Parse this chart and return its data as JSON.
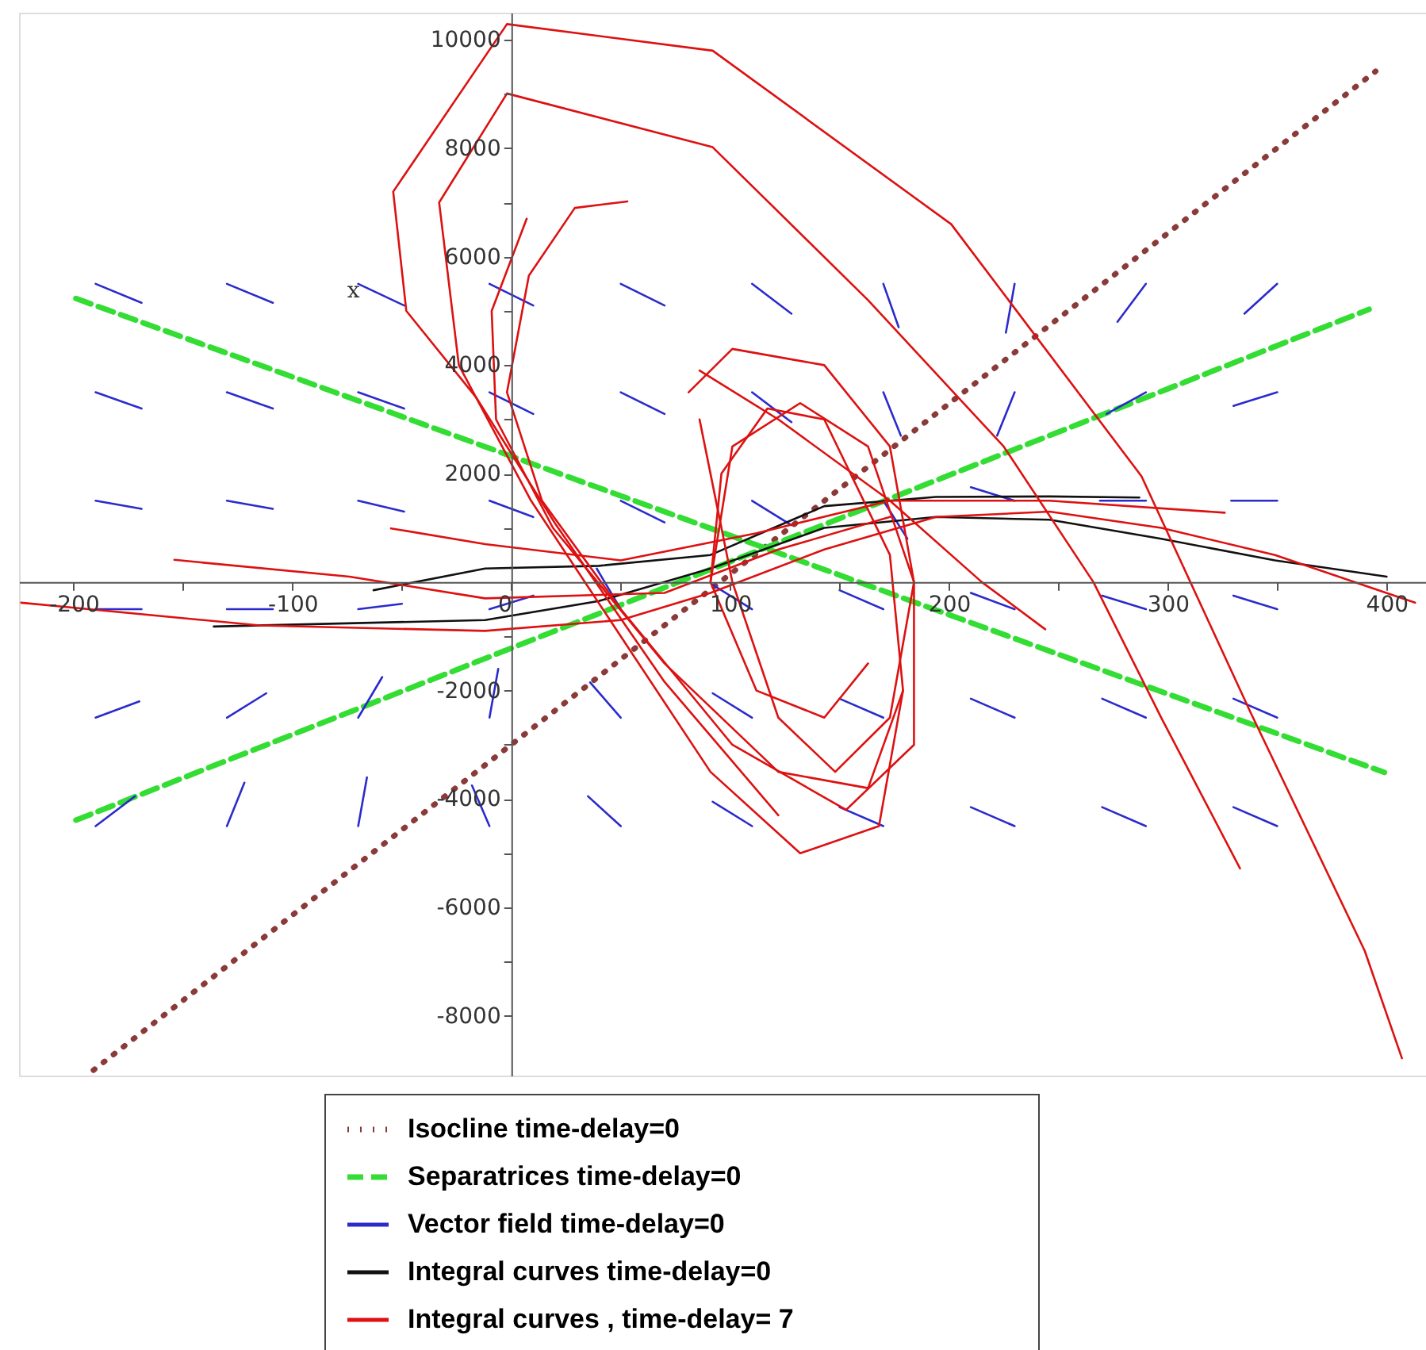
{
  "chart_data": {
    "type": "line",
    "ylabel": "x",
    "xlim": [
      -225,
      418
    ],
    "ylim": [
      -9100,
      10500
    ],
    "xticks": [
      -200,
      {
        "value": -150,
        "label": null
      },
      -100,
      {
        "value": -50,
        "label": null
      },
      0,
      {
        "value": 50,
        "label": null
      },
      100,
      {
        "value": 150,
        "label": null
      },
      200,
      {
        "value": 250,
        "label": null
      },
      300,
      {
        "value": 350,
        "label": null
      },
      400
    ],
    "yticks": [
      -8000,
      {
        "value": -7000,
        "label": null
      },
      -6000,
      {
        "value": -5000,
        "label": null
      },
      -4000,
      {
        "value": -3000,
        "label": null
      },
      -2000,
      {
        "value": -1000,
        "label": null
      },
      {
        "value": 1000,
        "label": null
      },
      2000,
      {
        "value": 3000,
        "label": null
      },
      4000,
      {
        "value": 5000,
        "label": null
      },
      6000,
      {
        "value": 7000,
        "label": null
      },
      8000,
      {
        "value": 9000,
        "label": null
      },
      10000
    ],
    "grid": false,
    "legend": "bottom",
    "marker": "none",
    "series": [
      {
        "name": "Isocline time-delay=0",
        "color": "#8b3a3a",
        "line_style": "dotted",
        "x": [
          -191,
          395
        ],
        "values": [
          -9000,
          9420
        ]
      },
      {
        "name": "Separatrices  time-delay=0",
        "color": "#33dd33",
        "line_style": "dashed",
        "x": [
          -199,
          399
        ],
        "values": [
          5230,
          -3510
        ]
      },
      {
        "color": "#33dd33",
        "line_style": "dashed",
        "x": [
          -199,
          392
        ],
        "values": [
          -4390,
          5030
        ]
      },
      {
        "name": "Vector field  time-delay=0",
        "color": "#2b2bcc",
        "line_style": "solid",
        "x": [
          -190,
          -169
        ],
        "values": [
          5500,
          5150
        ]
      },
      {
        "color": "#2b2bcc",
        "line_style": "solid",
        "x": [
          -190,
          -169
        ],
        "values": [
          3500,
          3200
        ]
      },
      {
        "color": "#2b2bcc",
        "line_style": "solid",
        "x": [
          -190,
          -169
        ],
        "values": [
          1500,
          1350
        ]
      },
      {
        "color": "#2b2bcc",
        "line_style": "solid",
        "x": [
          -190,
          -169
        ],
        "values": [
          -500,
          -500
        ]
      },
      {
        "color": "#2b2bcc",
        "line_style": "solid",
        "x": [
          -190,
          -170
        ],
        "values": [
          -2500,
          -2200
        ]
      },
      {
        "color": "#2b2bcc",
        "line_style": "solid",
        "x": [
          -190,
          -172
        ],
        "values": [
          -4500,
          -3950
        ]
      },
      {
        "color": "#2b2bcc",
        "line_style": "solid",
        "x": [
          -130,
          -109
        ],
        "values": [
          5500,
          5150
        ]
      },
      {
        "color": "#2b2bcc",
        "line_style": "solid",
        "x": [
          -130,
          -109
        ],
        "values": [
          3500,
          3200
        ]
      },
      {
        "color": "#2b2bcc",
        "line_style": "solid",
        "x": [
          -130,
          -109
        ],
        "values": [
          1500,
          1350
        ]
      },
      {
        "color": "#2b2bcc",
        "line_style": "solid",
        "x": [
          -130,
          -109
        ],
        "values": [
          -500,
          -500
        ]
      },
      {
        "color": "#2b2bcc",
        "line_style": "solid",
        "x": [
          -130,
          -112
        ],
        "values": [
          -2500,
          -2050
        ]
      },
      {
        "color": "#2b2bcc",
        "line_style": "solid",
        "x": [
          -130,
          -122
        ],
        "values": [
          -4500,
          -3700
        ]
      },
      {
        "color": "#2b2bcc",
        "line_style": "solid",
        "x": [
          -70,
          -49
        ],
        "values": [
          5500,
          5100
        ]
      },
      {
        "color": "#2b2bcc",
        "line_style": "solid",
        "x": [
          -70,
          -49
        ],
        "values": [
          3500,
          3200
        ]
      },
      {
        "color": "#2b2bcc",
        "line_style": "solid",
        "x": [
          -70,
          -49
        ],
        "values": [
          1500,
          1300
        ]
      },
      {
        "color": "#2b2bcc",
        "line_style": "solid",
        "x": [
          -70,
          -50
        ],
        "values": [
          -500,
          -400
        ]
      },
      {
        "color": "#2b2bcc",
        "line_style": "solid",
        "x": [
          -70,
          -59
        ],
        "values": [
          -2500,
          -1750
        ]
      },
      {
        "color": "#2b2bcc",
        "line_style": "solid",
        "x": [
          -70,
          -66
        ],
        "values": [
          -4500,
          -3600
        ]
      },
      {
        "color": "#2b2bcc",
        "line_style": "solid",
        "x": [
          -10,
          10
        ],
        "values": [
          5500,
          5100
        ]
      },
      {
        "color": "#2b2bcc",
        "line_style": "solid",
        "x": [
          -10,
          10
        ],
        "values": [
          3500,
          3100
        ]
      },
      {
        "color": "#2b2bcc",
        "line_style": "solid",
        "x": [
          -10,
          10
        ],
        "values": [
          1500,
          1200
        ]
      },
      {
        "color": "#2b2bcc",
        "line_style": "solid",
        "x": [
          -10,
          10
        ],
        "values": [
          -500,
          -250
        ]
      },
      {
        "color": "#2b2bcc",
        "line_style": "solid",
        "x": [
          -10,
          -6
        ],
        "values": [
          -2500,
          -1600
        ]
      },
      {
        "color": "#2b2bcc",
        "line_style": "solid",
        "x": [
          -10,
          -18
        ],
        "values": [
          -4500,
          -3750
        ]
      },
      {
        "color": "#2b2bcc",
        "line_style": "solid",
        "x": [
          50,
          70
        ],
        "values": [
          5500,
          5100
        ]
      },
      {
        "color": "#2b2bcc",
        "line_style": "solid",
        "x": [
          50,
          70
        ],
        "values": [
          3500,
          3100
        ]
      },
      {
        "color": "#2b2bcc",
        "line_style": "solid",
        "x": [
          50,
          70
        ],
        "values": [
          1500,
          1100
        ]
      },
      {
        "color": "#2b2bcc",
        "line_style": "solid",
        "x": [
          50,
          39
        ],
        "values": [
          -500,
          250
        ]
      },
      {
        "color": "#2b2bcc",
        "line_style": "solid",
        "x": [
          50,
          36
        ],
        "values": [
          -2500,
          -1850
        ]
      },
      {
        "color": "#2b2bcc",
        "line_style": "solid",
        "x": [
          50,
          35
        ],
        "values": [
          -4500,
          -3950
        ]
      },
      {
        "color": "#2b2bcc",
        "line_style": "solid",
        "x": [
          110,
          128
        ],
        "values": [
          5500,
          4950
        ]
      },
      {
        "color": "#2b2bcc",
        "line_style": "solid",
        "x": [
          110,
          128
        ],
        "values": [
          3500,
          2950
        ]
      },
      {
        "color": "#2b2bcc",
        "line_style": "solid",
        "x": [
          110,
          128
        ],
        "values": [
          1500,
          1050
        ]
      },
      {
        "color": "#2b2bcc",
        "line_style": "solid",
        "x": [
          110,
          92
        ],
        "values": [
          -500,
          -50
        ]
      },
      {
        "color": "#2b2bcc",
        "line_style": "solid",
        "x": [
          110,
          92
        ],
        "values": [
          -2500,
          -2050
        ]
      },
      {
        "color": "#2b2bcc",
        "line_style": "solid",
        "x": [
          110,
          92
        ],
        "values": [
          -4500,
          -4050
        ]
      },
      {
        "color": "#2b2bcc",
        "line_style": "solid",
        "x": [
          170,
          177
        ],
        "values": [
          5500,
          4700
        ]
      },
      {
        "color": "#2b2bcc",
        "line_style": "solid",
        "x": [
          170,
          178
        ],
        "values": [
          3500,
          2700
        ]
      },
      {
        "color": "#2b2bcc",
        "line_style": "solid",
        "x": [
          170,
          181
        ],
        "values": [
          1500,
          800
        ]
      },
      {
        "color": "#2b2bcc",
        "line_style": "solid",
        "x": [
          170,
          150
        ],
        "values": [
          -500,
          -150
        ]
      },
      {
        "color": "#2b2bcc",
        "line_style": "solid",
        "x": [
          170,
          150
        ],
        "values": [
          -2500,
          -2150
        ]
      },
      {
        "color": "#2b2bcc",
        "line_style": "solid",
        "x": [
          170,
          150
        ],
        "values": [
          -4500,
          -4150
        ]
      },
      {
        "color": "#2b2bcc",
        "line_style": "solid",
        "x": [
          230,
          226
        ],
        "values": [
          5500,
          4600
        ]
      },
      {
        "color": "#2b2bcc",
        "line_style": "solid",
        "x": [
          230,
          222
        ],
        "values": [
          3500,
          2700
        ]
      },
      {
        "color": "#2b2bcc",
        "line_style": "solid",
        "x": [
          230,
          210
        ],
        "values": [
          1500,
          1750
        ]
      },
      {
        "color": "#2b2bcc",
        "line_style": "solid",
        "x": [
          230,
          210
        ],
        "values": [
          -500,
          -200
        ]
      },
      {
        "color": "#2b2bcc",
        "line_style": "solid",
        "x": [
          230,
          210
        ],
        "values": [
          -2500,
          -2150
        ]
      },
      {
        "color": "#2b2bcc",
        "line_style": "solid",
        "x": [
          230,
          210
        ],
        "values": [
          -4500,
          -4150
        ]
      },
      {
        "color": "#2b2bcc",
        "line_style": "solid",
        "x": [
          290,
          277
        ],
        "values": [
          5500,
          4800
        ]
      },
      {
        "color": "#2b2bcc",
        "line_style": "solid",
        "x": [
          290,
          272
        ],
        "values": [
          3500,
          3100
        ]
      },
      {
        "color": "#2b2bcc",
        "line_style": "solid",
        "x": [
          290,
          269
        ],
        "values": [
          1500,
          1500
        ]
      },
      {
        "color": "#2b2bcc",
        "line_style": "solid",
        "x": [
          290,
          270
        ],
        "values": [
          -500,
          -250
        ]
      },
      {
        "color": "#2b2bcc",
        "line_style": "solid",
        "x": [
          290,
          270
        ],
        "values": [
          -2500,
          -2150
        ]
      },
      {
        "color": "#2b2bcc",
        "line_style": "solid",
        "x": [
          290,
          270
        ],
        "values": [
          -4500,
          -4150
        ]
      },
      {
        "color": "#2b2bcc",
        "line_style": "solid",
        "x": [
          350,
          335
        ],
        "values": [
          5500,
          4950
        ]
      },
      {
        "color": "#2b2bcc",
        "line_style": "solid",
        "x": [
          350,
          330
        ],
        "values": [
          3500,
          3250
        ]
      },
      {
        "color": "#2b2bcc",
        "line_style": "solid",
        "x": [
          350,
          329
        ],
        "values": [
          1500,
          1500
        ]
      },
      {
        "color": "#2b2bcc",
        "line_style": "solid",
        "x": [
          350,
          330
        ],
        "values": [
          -500,
          -250
        ]
      },
      {
        "color": "#2b2bcc",
        "line_style": "solid",
        "x": [
          350,
          330
        ],
        "values": [
          -2500,
          -2150
        ]
      },
      {
        "color": "#2b2bcc",
        "line_style": "solid",
        "x": [
          350,
          330
        ],
        "values": [
          -4500,
          -4150
        ]
      },
      {
        "name": "Integral curves  time-delay=0",
        "color": "#111111",
        "line_style": "solid",
        "x": [
          -136,
          -12,
          40,
          91,
          143,
          194,
          246,
          297,
          349,
          400
        ],
        "values": [
          -820,
          -700,
          -350,
          250,
          1000,
          1200,
          1150,
          800,
          400,
          100
        ]
      },
      {
        "color": "#111111",
        "line_style": "solid",
        "x": [
          -63,
          -12,
          40,
          91,
          143,
          194,
          246,
          287
        ],
        "values": [
          -150,
          250,
          300,
          500,
          1400,
          1570,
          1580,
          1560
        ]
      },
      {
        "name": "Integral curves ,  time-delay= 7",
        "color": "#dd1111",
        "line_style": "solid",
        "x": [
          407,
          390,
          338,
          288,
          201,
          92,
          -2,
          -54,
          -48,
          -16,
          20,
          70,
          122
        ],
        "values": [
          -8780,
          -6800,
          -2420,
          1950,
          6600,
          9800,
          10290,
          7200,
          5000,
          3400,
          1080,
          -1840,
          -4300
        ]
      },
      {
        "color": "#dd1111",
        "line_style": "solid",
        "x": [
          333,
          297,
          266,
          225,
          163,
          92,
          -2,
          -33,
          -24,
          9,
          50,
          91,
          132,
          168,
          179
        ],
        "values": [
          -5280,
          -2500,
          0,
          2500,
          5200,
          8020,
          9010,
          7000,
          4000,
          1500,
          -1000,
          -3500,
          -5000,
          -4500,
          -2000
        ]
      },
      {
        "color": "#dd1111",
        "line_style": "solid",
        "x": [
          53,
          29,
          8,
          -2,
          14,
          50,
          101,
          153,
          184,
          184,
          163,
          132,
          101,
          91
        ],
        "values": [
          7020,
          6900,
          5650,
          3500,
          1500,
          -500,
          -3000,
          -4200,
          -3000,
          0,
          2500,
          3300,
          2500,
          0
        ]
      },
      {
        "color": "#dd1111",
        "line_style": "solid",
        "x": [
          7,
          -9,
          -7,
          19,
          70,
          122,
          163,
          179,
          173,
          143,
          117,
          96,
          91,
          112,
          143,
          163
        ],
        "values": [
          6700,
          5000,
          3000,
          1000,
          -1500,
          -3500,
          -3800,
          -2000,
          500,
          3000,
          3200,
          2000,
          0,
          -2000,
          -2500,
          -1500
        ]
      },
      {
        "color": "#dd1111",
        "line_style": "solid",
        "x": [
          81,
          101,
          143,
          173,
          184,
          173,
          148,
          122,
          101,
          91,
          86
        ],
        "values": [
          3500,
          4300,
          4000,
          2500,
          0,
          -2500,
          -3500,
          -2500,
          0,
          2000,
          3000
        ]
      },
      {
        "color": "#dd1111",
        "line_style": "solid",
        "x": [
          -224,
          -115,
          -12,
          50,
          91,
          143,
          194,
          246,
          297,
          349,
          413
        ],
        "values": [
          -380,
          -800,
          -900,
          -700,
          -200,
          600,
          1200,
          1300,
          1000,
          500,
          -380
        ]
      },
      {
        "color": "#dd1111",
        "line_style": "solid",
        "x": [
          -154,
          -74,
          -12,
          70,
          122,
          173
        ],
        "values": [
          410,
          100,
          -300,
          -200,
          600,
          1200
        ]
      },
      {
        "color": "#dd1111",
        "line_style": "solid",
        "x": [
          -55,
          -12,
          50,
          112,
          173,
          246,
          326
        ],
        "values": [
          990,
          700,
          400,
          900,
          1500,
          1500,
          1280
        ]
      },
      {
        "color": "#dd1111",
        "line_style": "solid",
        "x": [
          86,
          122,
          173,
          215,
          244
        ],
        "values": [
          3900,
          3000,
          1500,
          0,
          -870
        ]
      }
    ]
  }
}
